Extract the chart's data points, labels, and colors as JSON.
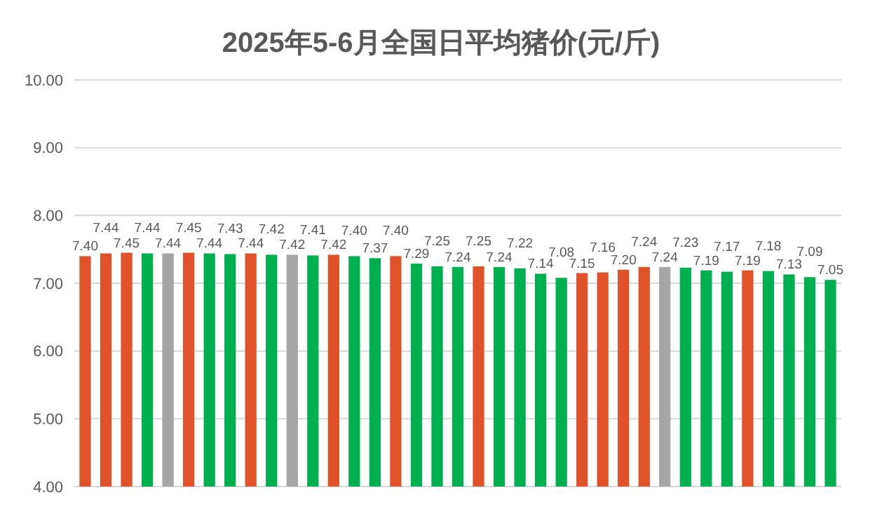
{
  "chart_data": {
    "type": "bar",
    "title": "2025年5-6月全国日平均猪价(元/斤)",
    "categories": [
      null,
      null,
      null,
      null,
      null,
      null,
      null,
      null,
      null,
      null,
      null,
      null,
      null,
      null,
      null,
      null,
      null,
      null,
      null,
      null,
      null,
      null,
      null,
      null,
      null,
      null,
      null,
      null,
      null,
      null,
      null,
      null,
      null,
      null,
      null,
      null,
      null
    ],
    "values": [
      7.4,
      7.44,
      7.45,
      7.44,
      7.44,
      7.45,
      7.44,
      7.43,
      7.44,
      7.42,
      7.42,
      7.41,
      7.42,
      7.4,
      7.37,
      7.4,
      7.29,
      7.25,
      7.24,
      7.25,
      7.24,
      7.22,
      7.14,
      7.08,
      7.15,
      7.16,
      7.2,
      7.24,
      7.24,
      7.23,
      7.19,
      7.17,
      7.19,
      7.18,
      7.13,
      7.09,
      7.05
    ],
    "colors": [
      "#e0532a",
      "#e0532a",
      "#e0532a",
      "#00b050",
      "#a5a5a5",
      "#e0532a",
      "#00b050",
      "#00b050",
      "#e0532a",
      "#00b050",
      "#a5a5a5",
      "#00b050",
      "#e0532a",
      "#00b050",
      "#00b050",
      "#e0532a",
      "#00b050",
      "#00b050",
      "#00b050",
      "#e0532a",
      "#00b050",
      "#00b050",
      "#00b050",
      "#00b050",
      "#e0532a",
      "#e0532a",
      "#e0532a",
      "#e0532a",
      "#a5a5a5",
      "#00b050",
      "#00b050",
      "#00b050",
      "#e0532a",
      "#00b050",
      "#00b050",
      "#00b050",
      "#00b050"
    ],
    "ylim": [
      4,
      10
    ],
    "yticks": [
      {
        "value": 4,
        "label": "4.00"
      },
      {
        "value": 5,
        "label": "5.00"
      },
      {
        "value": 6,
        "label": "6.00"
      },
      {
        "value": 7,
        "label": "7.00"
      },
      {
        "value": 8,
        "label": "8.00"
      },
      {
        "value": 9,
        "label": "9.00"
      },
      {
        "value": 10,
        "label": "10.00"
      }
    ],
    "grid": "y",
    "value_labels": [
      "7.40",
      "7.44",
      "7.45",
      "7.44",
      "7.44",
      "7.45",
      "7.44",
      "7.43",
      "7.44",
      "7.42",
      "7.42",
      "7.41",
      "7.42",
      "7.40",
      "7.37",
      "7.40",
      "7.29",
      "7.25",
      "7.24",
      "7.25",
      "7.24",
      "7.22",
      "7.14",
      "7.08",
      "7.15",
      "7.16",
      "7.20",
      "7.24",
      "7.24",
      "7.23",
      "7.19",
      "7.17",
      "7.19",
      "7.18",
      "7.13",
      "7.09",
      "7.05"
    ]
  }
}
